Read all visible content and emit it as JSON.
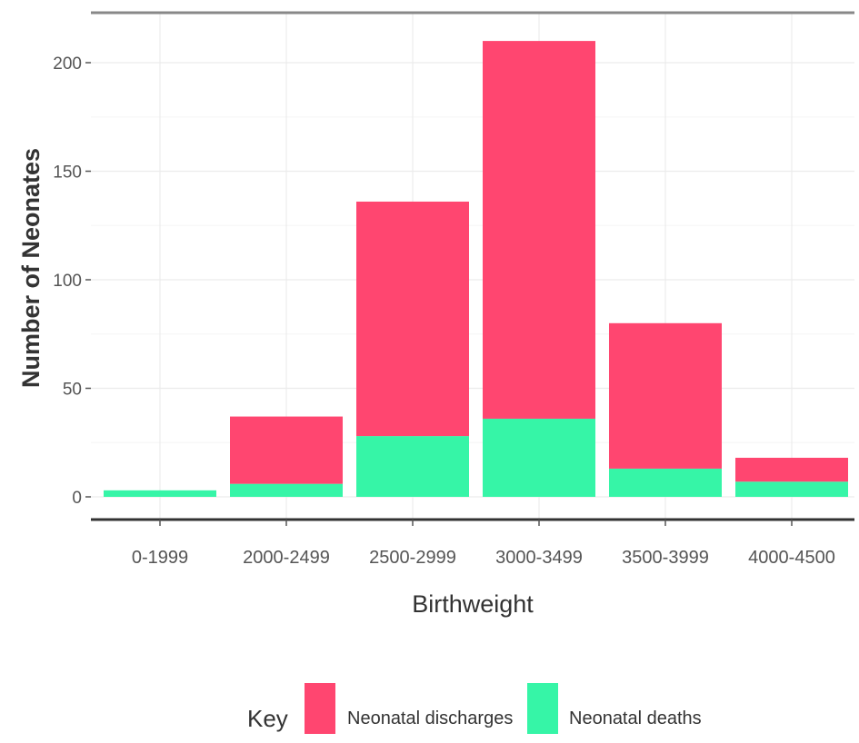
{
  "chart_data": {
    "type": "bar",
    "stacked": true,
    "title": "",
    "xlabel": "Birthweight",
    "ylabel": "Number of Neonates",
    "categories": [
      "0-1999",
      "2000-2499",
      "2500-2999",
      "3000-3499",
      "3500-3999",
      "4000-4500"
    ],
    "series": [
      {
        "name": "Neonatal deaths",
        "color": "#36f5a7",
        "values": [
          3,
          6,
          28,
          36,
          13,
          7
        ]
      },
      {
        "name": "Neonatal discharges",
        "color": "#ff4670",
        "values": [
          0,
          31,
          108,
          174,
          67,
          11
        ]
      }
    ],
    "ylim": [
      0,
      220
    ],
    "yticks": [
      0,
      50,
      100,
      150,
      200
    ],
    "grid": true,
    "legend": {
      "title": "Key",
      "position": "bottom",
      "items": [
        {
          "label": "Neonatal discharges",
          "color": "#ff4670"
        },
        {
          "label": "Neonatal deaths",
          "color": "#36f5a7"
        }
      ]
    }
  }
}
